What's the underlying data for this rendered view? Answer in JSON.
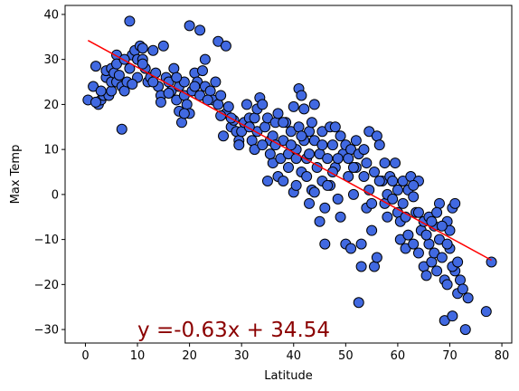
{
  "chart_data": {
    "type": "scatter",
    "xlabel": "Latitude",
    "ylabel": "Max Temp",
    "xlim": [
      -3.9,
      81.9
    ],
    "ylim": [
      -33,
      42
    ],
    "xticks": [
      0,
      10,
      20,
      30,
      40,
      50,
      60,
      70,
      80
    ],
    "yticks": [
      -30,
      -20,
      -10,
      0,
      10,
      20,
      30,
      40
    ],
    "grid": false,
    "marker_color": "#4169E1",
    "marker_edge": "#000000",
    "regression": {
      "slope": -0.63,
      "intercept": 34.54,
      "x_range": [
        0.5,
        78.0
      ],
      "color": "#FF0000",
      "equation": "y =-0.63x + 34.54",
      "equation_color": "#8B0000",
      "equation_pos": [
        10,
        -30
      ]
    },
    "series": [
      {
        "points": [
          [
            0.5,
            21
          ],
          [
            1.5,
            24
          ],
          [
            2,
            28.5
          ],
          [
            2.5,
            20
          ],
          [
            3,
            21
          ],
          [
            3.5,
            22
          ],
          [
            4,
            26
          ],
          [
            4,
            27.5
          ],
          [
            4.5,
            22
          ],
          [
            5,
            23
          ],
          [
            5,
            25
          ],
          [
            5,
            28
          ],
          [
            5.5,
            27
          ],
          [
            6,
            25
          ],
          [
            6,
            31
          ],
          [
            6.5,
            26.5
          ],
          [
            7,
            24
          ],
          [
            7,
            14.5
          ],
          [
            7.5,
            23
          ],
          [
            8,
            25
          ],
          [
            8.5,
            38.5
          ],
          [
            8.5,
            28
          ],
          [
            9,
            31
          ],
          [
            9.5,
            32
          ],
          [
            10,
            30
          ],
          [
            10,
            26
          ],
          [
            10.5,
            33
          ],
          [
            11,
            32.5
          ],
          [
            11,
            30
          ],
          [
            11.5,
            28
          ],
          [
            12,
            25
          ],
          [
            12.5,
            26
          ],
          [
            13,
            32
          ],
          [
            13.5,
            27
          ],
          [
            14,
            24
          ],
          [
            14.5,
            22
          ],
          [
            14.5,
            20.5
          ],
          [
            15,
            33
          ],
          [
            15.5,
            26
          ],
          [
            16,
            25
          ],
          [
            16.5,
            23
          ],
          [
            17,
            28
          ],
          [
            17.5,
            21
          ],
          [
            18,
            18.5
          ],
          [
            18,
            24
          ],
          [
            18.5,
            16
          ],
          [
            19,
            22
          ],
          [
            19,
            25
          ],
          [
            19.5,
            20
          ],
          [
            20,
            37.5
          ],
          [
            20,
            18
          ],
          [
            20.5,
            23
          ],
          [
            21,
            27
          ],
          [
            21.5,
            25
          ],
          [
            22,
            36.5
          ],
          [
            22,
            22
          ],
          [
            22.5,
            27.5
          ],
          [
            23,
            30
          ],
          [
            23,
            24
          ],
          [
            24,
            23
          ],
          [
            24.5,
            21
          ],
          [
            25,
            25
          ],
          [
            25.5,
            34
          ],
          [
            25.5,
            20
          ],
          [
            26,
            22
          ],
          [
            26.5,
            13
          ],
          [
            27,
            18
          ],
          [
            27,
            33
          ],
          [
            27.5,
            19.5
          ],
          [
            28,
            15
          ],
          [
            28.5,
            16.5
          ],
          [
            29,
            14
          ],
          [
            29.5,
            12
          ],
          [
            30,
            14
          ],
          [
            30.5,
            16
          ],
          [
            31,
            20
          ],
          [
            31.5,
            17
          ],
          [
            32,
            12
          ],
          [
            32.5,
            17
          ],
          [
            33,
            19
          ],
          [
            33,
            14
          ],
          [
            33.5,
            21.5
          ],
          [
            34,
            20
          ],
          [
            34.5,
            15
          ],
          [
            35,
            17
          ],
          [
            35,
            3
          ],
          [
            35.5,
            12
          ],
          [
            36,
            7
          ],
          [
            36,
            13
          ],
          [
            36.5,
            16
          ],
          [
            37,
            18
          ],
          [
            37,
            4
          ],
          [
            37.5,
            8
          ],
          [
            38,
            3
          ],
          [
            38,
            12
          ],
          [
            38.5,
            16
          ],
          [
            39,
            9
          ],
          [
            39,
            6
          ],
          [
            39.5,
            14
          ],
          [
            40,
            19.5
          ],
          [
            40,
            0.5
          ],
          [
            40.5,
            2
          ],
          [
            40.5,
            10
          ],
          [
            41,
            23.5
          ],
          [
            41,
            15
          ],
          [
            41.5,
            22
          ],
          [
            41.5,
            5
          ],
          [
            42,
            19
          ],
          [
            42,
            12
          ],
          [
            42.5,
            4
          ],
          [
            42.5,
            8
          ],
          [
            43,
            14
          ],
          [
            43,
            -2
          ],
          [
            43.5,
            1
          ],
          [
            43.5,
            16
          ],
          [
            44,
            20
          ],
          [
            44,
            12
          ],
          [
            44.5,
            6
          ],
          [
            45,
            9
          ],
          [
            45,
            -6
          ],
          [
            45.5,
            3
          ],
          [
            45.5,
            14
          ],
          [
            46,
            -11
          ],
          [
            46,
            -3
          ],
          [
            46.5,
            8
          ],
          [
            47,
            15
          ],
          [
            47,
            2
          ],
          [
            47.5,
            11
          ],
          [
            48,
            15
          ],
          [
            48,
            6
          ],
          [
            48.5,
            -1
          ],
          [
            49,
            -5
          ],
          [
            49,
            13
          ],
          [
            49.5,
            9
          ],
          [
            50,
            -11
          ],
          [
            50,
            11
          ],
          [
            50.5,
            4
          ],
          [
            51,
            -12
          ],
          [
            51,
            10
          ],
          [
            51.5,
            0
          ],
          [
            52,
            6
          ],
          [
            52,
            12
          ],
          [
            52.5,
            -24
          ],
          [
            53,
            -11
          ],
          [
            53,
            -16
          ],
          [
            53.5,
            4
          ],
          [
            54,
            7
          ],
          [
            54,
            -3
          ],
          [
            54.5,
            14
          ],
          [
            55,
            -2
          ],
          [
            55,
            -8
          ],
          [
            55.5,
            -16
          ],
          [
            56,
            -14
          ],
          [
            56,
            13
          ],
          [
            56.5,
            11
          ],
          [
            57,
            3
          ],
          [
            57.5,
            -2
          ],
          [
            58,
            -5
          ],
          [
            58,
            0
          ],
          [
            58.5,
            4
          ],
          [
            59,
            -1
          ],
          [
            59.5,
            7
          ],
          [
            60,
            -4
          ],
          [
            60.5,
            -6
          ],
          [
            60.5,
            -10
          ],
          [
            61,
            -2
          ],
          [
            61,
            3
          ],
          [
            61.5,
            -12
          ],
          [
            62,
            -9
          ],
          [
            62,
            1
          ],
          [
            62.5,
            4
          ],
          [
            63,
            -0.5
          ],
          [
            63,
            -11
          ],
          [
            63.5,
            -4
          ],
          [
            64,
            -13
          ],
          [
            64,
            3
          ],
          [
            64.5,
            -8
          ],
          [
            65,
            -6
          ],
          [
            65,
            -16
          ],
          [
            65.5,
            -18
          ],
          [
            66,
            -5
          ],
          [
            66,
            -11
          ],
          [
            66.5,
            -15
          ],
          [
            67,
            -7
          ],
          [
            67,
            -13
          ],
          [
            67.5,
            -17
          ],
          [
            68,
            -2
          ],
          [
            68,
            -10
          ],
          [
            68.5,
            -14
          ],
          [
            69,
            -19
          ],
          [
            69,
            -28
          ],
          [
            69.5,
            -20
          ],
          [
            69.5,
            -6
          ],
          [
            70,
            -8
          ],
          [
            70,
            -12
          ],
          [
            70.5,
            -27
          ],
          [
            70.5,
            -3
          ],
          [
            71,
            -17
          ],
          [
            71,
            -2
          ],
          [
            71.5,
            -22
          ],
          [
            72,
            -19
          ],
          [
            72.5,
            -21
          ],
          [
            73,
            -30
          ],
          [
            73.5,
            -23
          ],
          [
            77,
            -26
          ],
          [
            78,
            -15
          ],
          [
            2,
            20.5
          ],
          [
            3,
            23
          ],
          [
            6,
            29
          ],
          [
            7.5,
            30
          ],
          [
            9,
            24.5
          ],
          [
            11,
            29
          ],
          [
            13,
            25
          ],
          [
            16,
            22.5
          ],
          [
            17.5,
            26
          ],
          [
            19,
            18
          ],
          [
            21,
            24
          ],
          [
            23.5,
            21
          ],
          [
            26,
            17.5
          ],
          [
            28,
            17
          ],
          [
            29.5,
            11
          ],
          [
            31.5,
            15
          ],
          [
            32.5,
            10
          ],
          [
            34,
            11
          ],
          [
            35.5,
            9
          ],
          [
            36.5,
            11
          ],
          [
            38,
            16
          ],
          [
            39.5,
            11
          ],
          [
            40.5,
            8
          ],
          [
            41.5,
            13
          ],
          [
            43,
            9
          ],
          [
            44,
            0.5
          ],
          [
            45.5,
            11
          ],
          [
            46.5,
            2
          ],
          [
            47.5,
            5
          ],
          [
            48.5,
            8
          ],
          [
            50.5,
            8
          ],
          [
            51.5,
            6
          ],
          [
            52.5,
            9
          ],
          [
            53.5,
            10
          ],
          [
            54.5,
            1
          ],
          [
            55.5,
            5
          ],
          [
            56.5,
            3
          ],
          [
            57.5,
            7
          ],
          [
            59,
            3
          ],
          [
            60,
            1
          ],
          [
            61.5,
            -5
          ],
          [
            63,
            2
          ],
          [
            64,
            -4
          ],
          [
            65.5,
            -9
          ],
          [
            66.5,
            -6
          ],
          [
            67.5,
            -4
          ],
          [
            68.5,
            -7
          ],
          [
            69.5,
            -11
          ],
          [
            70.5,
            -16
          ],
          [
            71.5,
            -15
          ]
        ]
      }
    ]
  }
}
